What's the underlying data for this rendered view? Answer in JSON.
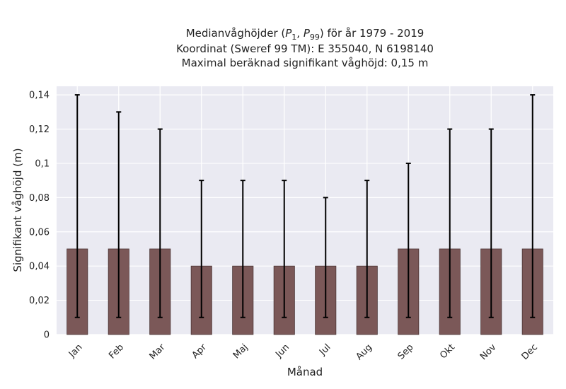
{
  "chart_data": {
    "type": "bar",
    "title_lines": [
      "Medianvåghöjder (P1, P99) för år 1979 - 2019",
      "Koordinat (Sweref 99 TM): E 355040, N 6198140",
      "Maximal beräknad signifikant våghöjd: 0,15 m"
    ],
    "title_math": {
      "prefix": "Medianvåghöjder (",
      "p1_base": "P",
      "p1_sub": "1",
      "separator": ", ",
      "p99_base": "P",
      "p99_sub": "99",
      "suffix": ") för år 1979 - 2019"
    },
    "xlabel": "Månad",
    "ylabel": "Signifikant våghöjd (m)",
    "categories": [
      "Jan",
      "Feb",
      "Mar",
      "Apr",
      "Maj",
      "Jun",
      "Jul",
      "Aug",
      "Sep",
      "Okt",
      "Nov",
      "Dec"
    ],
    "values": [
      0.05,
      0.05,
      0.05,
      0.04,
      0.04,
      0.04,
      0.04,
      0.04,
      0.05,
      0.05,
      0.05,
      0.05
    ],
    "error_low": [
      0.01,
      0.01,
      0.01,
      0.01,
      0.01,
      0.01,
      0.01,
      0.01,
      0.01,
      0.01,
      0.01,
      0.01
    ],
    "error_high": [
      0.14,
      0.13,
      0.12,
      0.09,
      0.09,
      0.09,
      0.08,
      0.09,
      0.1,
      0.12,
      0.12,
      0.14
    ],
    "ylim": [
      0,
      0.145
    ],
    "yticks": [
      0,
      0.02,
      0.04,
      0.06,
      0.08,
      0.1,
      0.12,
      0.14
    ],
    "ytick_labels": [
      "0",
      "0,02",
      "0,04",
      "0,06",
      "0,08",
      "0,1",
      "0,12",
      "0,14"
    ],
    "grid": true,
    "colors": {
      "bar": "#7b5858",
      "bar_edge": "#4a3535",
      "plot_bg": "#eaeaf2",
      "grid": "#ffffff",
      "errorbar": "#000000"
    }
  }
}
